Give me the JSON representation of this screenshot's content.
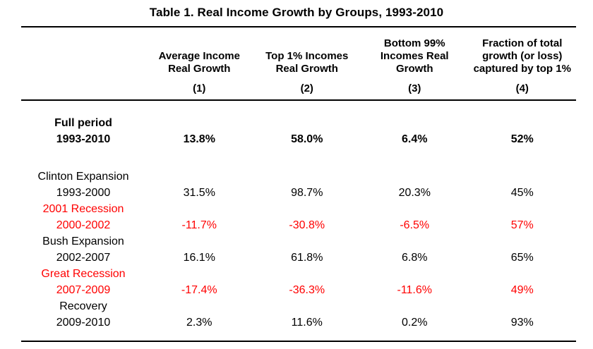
{
  "colors": {
    "text": "#000000",
    "negative": "#ff0000",
    "rule": "#000000",
    "bg": "#ffffff"
  },
  "table": {
    "title": "Table 1. Real Income Growth by Groups, 1993-2010",
    "columns": [
      {
        "lines": [
          "Average Income",
          "Real Growth"
        ],
        "number": "(1)"
      },
      {
        "lines": [
          "Top 1% Incomes",
          "Real Growth"
        ],
        "number": "(2)"
      },
      {
        "lines": [
          "Bottom 99%",
          "Incomes Real",
          "Growth"
        ],
        "number": "(3)"
      },
      {
        "lines": [
          "Fraction of total",
          "growth (or loss)",
          "captured by top 1%"
        ],
        "number": "(4)"
      }
    ],
    "rows": [
      {
        "name": "Full period",
        "years": "1993-2010",
        "values": [
          "13.8%",
          "58.0%",
          "6.4%",
          "52%"
        ],
        "bold": true,
        "red": false
      },
      {
        "name": "Clinton Expansion",
        "years": "1993-2000",
        "values": [
          "31.5%",
          "98.7%",
          "20.3%",
          "45%"
        ],
        "bold": false,
        "red": false
      },
      {
        "name": "2001 Recession",
        "years": "2000-2002",
        "values": [
          "-11.7%",
          "-30.8%",
          "-6.5%",
          "57%"
        ],
        "bold": false,
        "red": true
      },
      {
        "name": "Bush Expansion",
        "years": "2002-2007",
        "values": [
          "16.1%",
          "61.8%",
          "6.8%",
          "65%"
        ],
        "bold": false,
        "red": false
      },
      {
        "name": "Great Recession",
        "years": "2007-2009",
        "values": [
          "-17.4%",
          "-36.3%",
          "-11.6%",
          "49%"
        ],
        "bold": false,
        "red": true
      },
      {
        "name": "Recovery",
        "years": "2009-2010",
        "values": [
          "2.3%",
          "11.6%",
          "0.2%",
          "93%"
        ],
        "bold": false,
        "red": false
      }
    ]
  }
}
